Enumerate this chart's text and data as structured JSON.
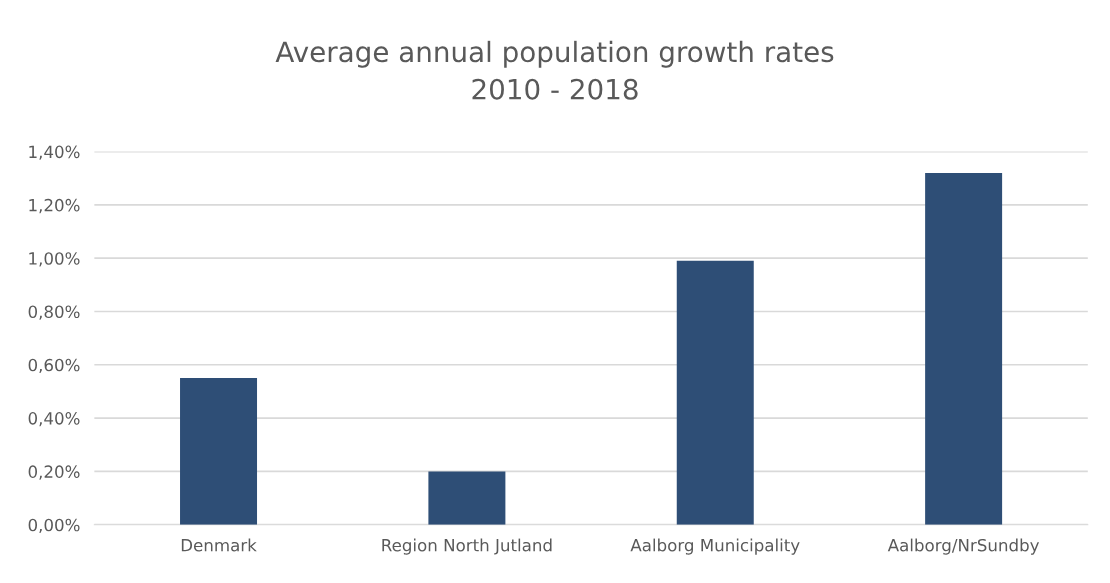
{
  "chart_data": {
    "type": "bar",
    "title": "Average annual population growth rates\n2010 - 2018",
    "categories": [
      "Denmark",
      "Region North Jutland",
      "Aalborg Municipality",
      "Aalborg/NrSundby"
    ],
    "values": [
      0.55,
      0.2,
      0.99,
      1.32
    ],
    "color": "#2e4e76",
    "ylim": [
      0,
      1.4
    ],
    "yticks": [
      {
        "value": 0,
        "label": "0,00%"
      },
      {
        "value": 0.2,
        "label": "0,20%"
      },
      {
        "value": 0.4,
        "label": "0,40%"
      },
      {
        "value": 0.6,
        "label": "0,60%"
      },
      {
        "value": 0.8,
        "label": "0,80%"
      },
      {
        "value": 1.0,
        "label": "1,00%"
      },
      {
        "value": 1.2,
        "label": "1,20%"
      },
      {
        "value": 1.4,
        "label": "1,40%"
      }
    ],
    "grid": "y"
  }
}
